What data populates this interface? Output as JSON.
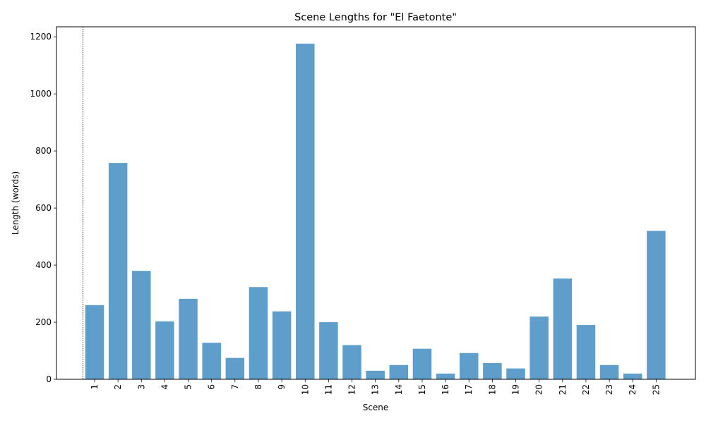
{
  "chart_data": {
    "type": "bar",
    "title": "Scene Lengths for \"El Faetonte\"",
    "xlabel": "Scene",
    "ylabel": "Length (words)",
    "categories": [
      "1",
      "2",
      "3",
      "4",
      "5",
      "6",
      "7",
      "8",
      "9",
      "10",
      "11",
      "12",
      "13",
      "14",
      "15",
      "16",
      "17",
      "18",
      "19",
      "20",
      "21",
      "22",
      "23",
      "24",
      "25"
    ],
    "values": [
      260,
      758,
      380,
      203,
      282,
      128,
      75,
      323,
      238,
      1176,
      200,
      120,
      30,
      50,
      107,
      20,
      92,
      57,
      38,
      220,
      353,
      190,
      50,
      20,
      520
    ],
    "ylim": [
      0,
      1235
    ],
    "yticks": [
      0,
      200,
      400,
      600,
      800,
      1000,
      1200
    ],
    "bar_color": "#5f9ecb",
    "bar_opacity": 1,
    "reference_line": {
      "style": "dotted",
      "position": "left of first bar"
    },
    "grid": false,
    "legend": "none"
  }
}
